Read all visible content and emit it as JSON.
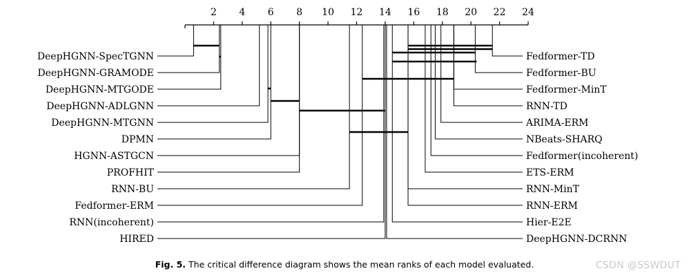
{
  "chart_data": {
    "type": "critical-difference",
    "title": "",
    "axis": {
      "min": 0,
      "max": 24,
      "ticks": [
        2,
        4,
        6,
        8,
        10,
        12,
        14,
        16,
        18,
        20,
        22,
        24
      ]
    },
    "left_models": [
      {
        "name": "DeepHGNN-SpecTGNN",
        "rank": 0.6
      },
      {
        "name": "DeepHGNN-GRAMODE",
        "rank": 2.4
      },
      {
        "name": "DeepHGNN-MTGODE",
        "rank": 2.5
      },
      {
        "name": "DeepHGNN-ADLGNN",
        "rank": 5.2
      },
      {
        "name": "DeepHGNN-MTGNN",
        "rank": 5.8
      },
      {
        "name": "DPMN",
        "rank": 6.0
      },
      {
        "name": "HGNN-ASTGCN",
        "rank": 8.0
      },
      {
        "name": "PROFHIT",
        "rank": 8.0
      },
      {
        "name": "RNN-BU",
        "rank": 11.5
      },
      {
        "name": "Fedformer-ERM",
        "rank": 12.4
      },
      {
        "name": "RNN(incoherent)",
        "rank": 13.9
      },
      {
        "name": "HIRED",
        "rank": 14.0
      }
    ],
    "right_models": [
      {
        "name": "Fedformer-TD",
        "rank": 21.5
      },
      {
        "name": "Fedformer-BU",
        "rank": 20.3
      },
      {
        "name": "Fedformer-MinT",
        "rank": 18.8
      },
      {
        "name": "RNN-TD",
        "rank": 18.8
      },
      {
        "name": "ARIMA-ERM",
        "rank": 17.9
      },
      {
        "name": "NBeats-SHARQ",
        "rank": 17.5
      },
      {
        "name": "Fedformer(incoherent)",
        "rank": 17.2
      },
      {
        "name": "ETS-ERM",
        "rank": 16.8
      },
      {
        "name": "RNN-MinT",
        "rank": 15.6
      },
      {
        "name": "RNN-ERM",
        "rank": 15.6
      },
      {
        "name": "Hier-E2E",
        "rank": 14.5
      },
      {
        "name": "DeepHGNN-DCRNN",
        "rank": 14.1
      }
    ],
    "cliques": [
      [
        0.6,
        2.4
      ],
      [
        2.4,
        2.5
      ],
      [
        5.8,
        6.0
      ],
      [
        6.0,
        8.0
      ],
      [
        8.0,
        14.0
      ],
      [
        11.5,
        15.6
      ],
      [
        12.4,
        18.8
      ],
      [
        14.5,
        20.3
      ],
      [
        14.5,
        20.4
      ],
      [
        15.6,
        21.5
      ],
      [
        15.6,
        21.5
      ]
    ]
  },
  "caption": {
    "label": "Fig. 5.",
    "text": "The critical difference diagram shows the mean ranks of each model evaluated."
  },
  "watermark": "CSDN @SSWDUT"
}
